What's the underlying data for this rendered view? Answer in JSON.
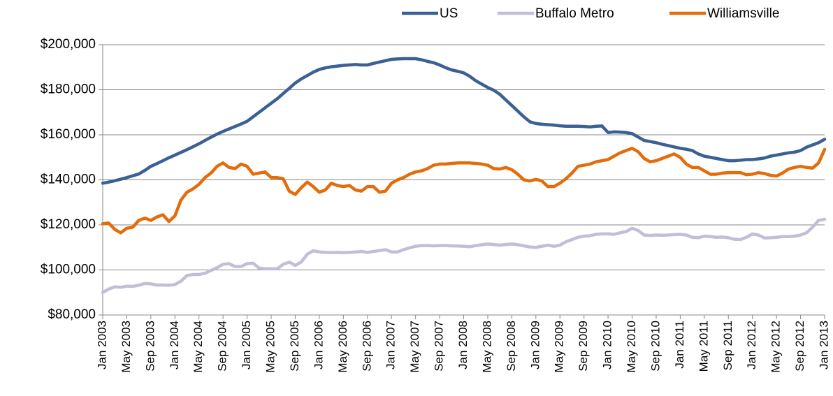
{
  "chart_data": {
    "type": "line",
    "categories": [
      "Jan 2003",
      null,
      null,
      null,
      "May 2003",
      null,
      null,
      null,
      "Sep 2003",
      null,
      null,
      null,
      "Jan 2004",
      null,
      null,
      null,
      "May 2004",
      null,
      null,
      null,
      "Sep 2004",
      null,
      null,
      null,
      "Jan 2005",
      null,
      null,
      null,
      "May 2005",
      null,
      null,
      null,
      "Sep 2005",
      null,
      null,
      null,
      "Jan 2006",
      null,
      null,
      null,
      "May 2006",
      null,
      null,
      null,
      "Sep 2006",
      null,
      null,
      null,
      "Jan 2007",
      null,
      null,
      null,
      "May 2007",
      null,
      null,
      null,
      "Sep 2007",
      null,
      null,
      null,
      "Jan 2008",
      null,
      null,
      null,
      "May 2008",
      null,
      null,
      null,
      "Sep 2008",
      null,
      null,
      null,
      "Jan 2009",
      null,
      null,
      null,
      "May 2009",
      null,
      null,
      null,
      "Sep 2009",
      null,
      null,
      null,
      "Jan 2010",
      null,
      null,
      null,
      "May 2010",
      null,
      null,
      null,
      "Sep 2010",
      null,
      null,
      null,
      "Jan 2011",
      null,
      null,
      null,
      "May 2011",
      null,
      null,
      null,
      "Sep 2011",
      null,
      null,
      null,
      "Jan 2012",
      null,
      null,
      null,
      "May 2012",
      null,
      null,
      null,
      "Sep 2012",
      null,
      null,
      null,
      "Jan 2013"
    ],
    "series": [
      {
        "name": "US",
        "color": "#3b6194",
        "values": [
          138500,
          139000,
          139600,
          140300,
          141000,
          141800,
          142600,
          144200,
          146000,
          147200,
          148500,
          149800,
          151000,
          152200,
          153400,
          154700,
          156000,
          157500,
          158900,
          160300,
          161500,
          162600,
          163700,
          164800,
          166000,
          168000,
          170000,
          172000,
          174000,
          176000,
          178300,
          180600,
          183000,
          184800,
          186300,
          187800,
          189000,
          189700,
          190200,
          190500,
          190800,
          191000,
          191200,
          191000,
          191000,
          191700,
          192300,
          192900,
          193500,
          193700,
          193800,
          193800,
          193800,
          193300,
          192600,
          192000,
          191000,
          189800,
          188800,
          188200,
          187500,
          186000,
          184000,
          182500,
          181000,
          179800,
          178000,
          175500,
          173000,
          170500,
          168000,
          165800,
          165000,
          164700,
          164500,
          164300,
          164000,
          163800,
          163800,
          163800,
          163700,
          163500,
          163800,
          163900,
          161000,
          161300,
          161200,
          161000,
          160500,
          159000,
          157500,
          157000,
          156500,
          155800,
          155200,
          154600,
          154000,
          153600,
          153000,
          151500,
          150500,
          150000,
          149500,
          149000,
          148500,
          148500,
          148700,
          149000,
          149000,
          149300,
          149700,
          150500,
          151000,
          151500,
          152000,
          152300,
          153000,
          154500,
          155500,
          156500,
          158000
        ]
      },
      {
        "name": "Buffalo Metro",
        "color": "#c4bdd9",
        "values": [
          90000,
          91500,
          92500,
          92300,
          92800,
          92700,
          93200,
          94000,
          93800,
          93300,
          93300,
          93200,
          93500,
          95000,
          97500,
          98000,
          98000,
          98500,
          99800,
          101000,
          102500,
          102800,
          101500,
          101500,
          102800,
          103000,
          100800,
          100500,
          100500,
          100500,
          102500,
          103500,
          102000,
          103500,
          107000,
          108500,
          108000,
          107800,
          107700,
          107800,
          107700,
          107800,
          108000,
          108200,
          107800,
          108200,
          108600,
          109000,
          108000,
          108000,
          109000,
          109800,
          110500,
          110800,
          110800,
          110700,
          110800,
          110800,
          110700,
          110600,
          110500,
          110300,
          110800,
          111200,
          111500,
          111300,
          111000,
          111300,
          111500,
          111200,
          110700,
          110200,
          110000,
          110500,
          111000,
          110500,
          111000,
          112500,
          113500,
          114500,
          115000,
          115200,
          115800,
          116000,
          116000,
          115800,
          116500,
          117000,
          118500,
          117500,
          115500,
          115300,
          115500,
          115400,
          115500,
          115700,
          115800,
          115500,
          114500,
          114300,
          115000,
          114800,
          114500,
          114600,
          114300,
          113600,
          113500,
          114500,
          116000,
          115500,
          114200,
          114300,
          114500,
          114800,
          114800,
          115000,
          115500,
          116500,
          119000,
          122000,
          122500
        ]
      },
      {
        "name": "Williamsville",
        "color": "#e46c0a",
        "values": [
          120500,
          120800,
          118000,
          116500,
          118500,
          119000,
          122000,
          123000,
          122000,
          123500,
          124500,
          121500,
          124000,
          131000,
          134500,
          136000,
          138000,
          141000,
          143000,
          146000,
          147500,
          145500,
          145000,
          147000,
          146000,
          142500,
          143000,
          143500,
          141000,
          141000,
          140500,
          135000,
          133500,
          136500,
          139000,
          137000,
          134500,
          135500,
          138500,
          137500,
          137000,
          137500,
          135500,
          135000,
          137000,
          137000,
          134500,
          135000,
          138500,
          140000,
          141000,
          142500,
          143500,
          144000,
          145000,
          146500,
          147000,
          147000,
          147300,
          147500,
          147500,
          147500,
          147300,
          147000,
          146500,
          145000,
          144800,
          145500,
          144500,
          142500,
          140000,
          139500,
          140200,
          139500,
          137000,
          137000,
          138500,
          140500,
          143000,
          146000,
          146500,
          147000,
          148000,
          148500,
          149000,
          150500,
          152000,
          153000,
          154000,
          152500,
          149500,
          148000,
          148500,
          149500,
          150500,
          151500,
          150000,
          147000,
          145500,
          145500,
          144000,
          142500,
          142500,
          143000,
          143200,
          143200,
          143200,
          142300,
          142500,
          143200,
          142800,
          142000,
          141700,
          143000,
          144800,
          145500,
          146000,
          145500,
          145200,
          147500,
          153500
        ]
      }
    ],
    "ylim": [
      80000,
      200000
    ],
    "yticks": [
      {
        "value": 80000,
        "label": "$80,000"
      },
      {
        "value": 100000,
        "label": "$100,000"
      },
      {
        "value": 120000,
        "label": "$120,000"
      },
      {
        "value": 140000,
        "label": "$140,000"
      },
      {
        "value": 160000,
        "label": "$160,000"
      },
      {
        "value": 180000,
        "label": "$180,000"
      },
      {
        "value": 200000,
        "label": "$200,000"
      }
    ],
    "grid": true,
    "legend": "top-right"
  }
}
